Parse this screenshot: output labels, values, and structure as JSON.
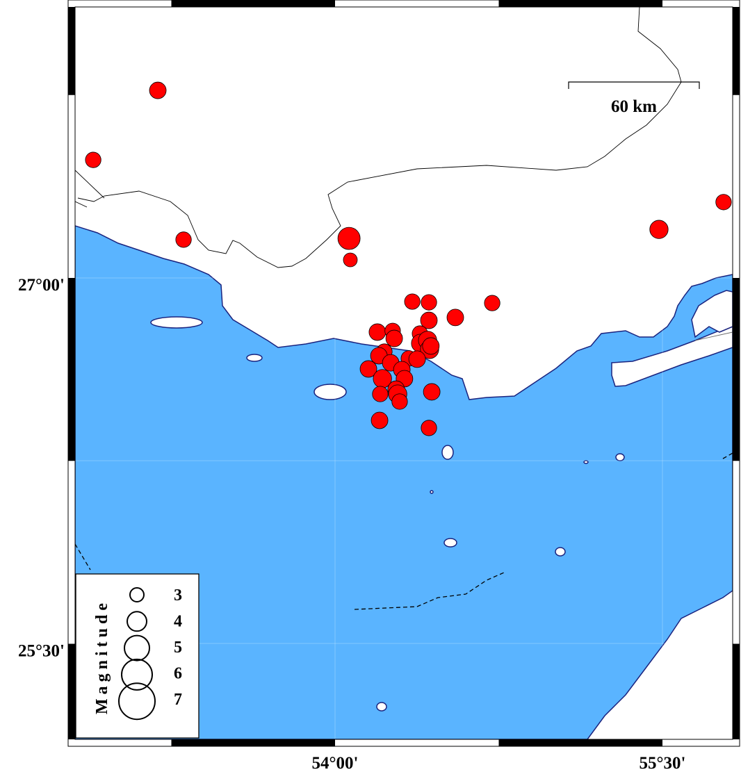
{
  "map": {
    "projection": "mercator",
    "region_deg": {
      "lon_min": 52.81,
      "lon_max": 55.82,
      "lat_min": 25.11,
      "lat_max": 28.11
    },
    "colors": {
      "sea": "#5ab4ff",
      "land": "#ffffff",
      "coastline": "#1a237e",
      "event_fill": "#ff0000",
      "event_stroke": "#000000",
      "border": "#000000"
    },
    "x_ticks": [
      {
        "lon": 54.0,
        "label": "54°00'"
      },
      {
        "lon": 55.5,
        "label": "55°30'"
      }
    ],
    "y_ticks": [
      {
        "lat": 27.0,
        "label": "27°00'"
      },
      {
        "lat": 25.5,
        "label": "25°30'"
      }
    ],
    "frame_interval_deg": 0.75,
    "gridlines": true
  },
  "scale_bar": {
    "label": "60 km",
    "length_km": 60
  },
  "legend": {
    "title": "Magnitude",
    "entries": [
      {
        "mag": 3,
        "label": "3"
      },
      {
        "mag": 4,
        "label": "4"
      },
      {
        "mag": 5,
        "label": "5"
      },
      {
        "mag": 6,
        "label": "6"
      },
      {
        "mag": 7,
        "label": "7"
      }
    ]
  },
  "events": [
    {
      "lon": 53.188,
      "lat": 27.769,
      "mag": 3.5
    },
    {
      "lon": 52.892,
      "lat": 27.484,
      "mag": 3.3
    },
    {
      "lon": 53.306,
      "lat": 27.157,
      "mag": 3.3
    },
    {
      "lon": 54.064,
      "lat": 27.162,
      "mag": 4.5
    },
    {
      "lon": 54.07,
      "lat": 27.074,
      "mag": 3.0
    },
    {
      "lon": 55.484,
      "lat": 27.199,
      "mag": 3.8
    },
    {
      "lon": 55.78,
      "lat": 27.311,
      "mag": 3.3
    },
    {
      "lon": 54.354,
      "lat": 26.903,
      "mag": 3.3
    },
    {
      "lon": 54.43,
      "lat": 26.9,
      "mag": 3.3
    },
    {
      "lon": 54.72,
      "lat": 26.897,
      "mag": 3.3
    },
    {
      "lon": 54.551,
      "lat": 26.838,
      "mag": 3.5
    },
    {
      "lon": 54.43,
      "lat": 26.826,
      "mag": 3.5
    },
    {
      "lon": 54.194,
      "lat": 26.778,
      "mag": 3.5
    },
    {
      "lon": 54.264,
      "lat": 26.783,
      "mag": 3.3
    },
    {
      "lon": 54.271,
      "lat": 26.752,
      "mag": 3.5
    },
    {
      "lon": 54.389,
      "lat": 26.772,
      "mag": 3.3
    },
    {
      "lon": 54.392,
      "lat": 26.732,
      "mag": 3.8
    },
    {
      "lon": 54.424,
      "lat": 26.744,
      "mag": 3.8
    },
    {
      "lon": 54.433,
      "lat": 26.707,
      "mag": 3.8
    },
    {
      "lon": 54.439,
      "lat": 26.721,
      "mag": 3.5
    },
    {
      "lon": 54.226,
      "lat": 26.698,
      "mag": 3.3
    },
    {
      "lon": 54.201,
      "lat": 26.681,
      "mag": 3.5
    },
    {
      "lon": 54.338,
      "lat": 26.67,
      "mag": 3.3
    },
    {
      "lon": 54.376,
      "lat": 26.667,
      "mag": 3.5
    },
    {
      "lon": 54.153,
      "lat": 26.627,
      "mag": 3.5
    },
    {
      "lon": 54.255,
      "lat": 26.652,
      "mag": 3.5
    },
    {
      "lon": 54.306,
      "lat": 26.624,
      "mag": 3.5
    },
    {
      "lon": 54.217,
      "lat": 26.587,
      "mag": 3.8
    },
    {
      "lon": 54.318,
      "lat": 26.587,
      "mag": 3.5
    },
    {
      "lon": 54.28,
      "lat": 26.544,
      "mag": 3.5
    },
    {
      "lon": 54.287,
      "lat": 26.524,
      "mag": 3.8
    },
    {
      "lon": 54.296,
      "lat": 26.493,
      "mag": 3.3
    },
    {
      "lon": 54.207,
      "lat": 26.524,
      "mag": 3.3
    },
    {
      "lon": 54.443,
      "lat": 26.533,
      "mag": 3.5
    },
    {
      "lon": 54.204,
      "lat": 26.416,
      "mag": 3.5
    },
    {
      "lon": 54.43,
      "lat": 26.385,
      "mag": 3.3
    }
  ]
}
